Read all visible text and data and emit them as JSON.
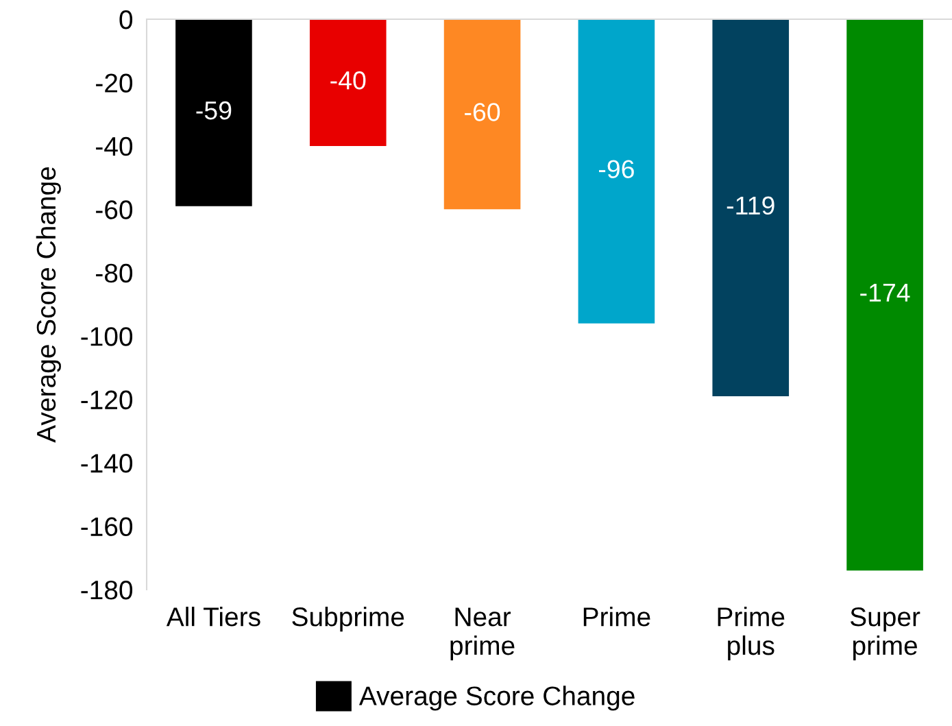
{
  "chart_data": {
    "type": "bar",
    "ylabel": "Average Score Change",
    "categories": [
      "All Tiers",
      "Subprime",
      "Near\nprime",
      "Prime",
      "Prime\nplus",
      "Super\nprime"
    ],
    "series": [
      {
        "name": "Average Score Change",
        "color": "#000000",
        "colors": [
          "#000000",
          "#e80000",
          "#fe8823",
          "#00a6cb",
          "#02425f",
          "#008a00"
        ],
        "values": [
          -59,
          -40,
          -60,
          -96,
          -119,
          -174
        ]
      }
    ],
    "ylim": [
      -180,
      0
    ],
    "yticks": [
      0,
      -20,
      -40,
      -60,
      -80,
      -100,
      -120,
      -140,
      -160,
      -180
    ],
    "data_labels": true,
    "grid": false,
    "legend": "bottom"
  }
}
